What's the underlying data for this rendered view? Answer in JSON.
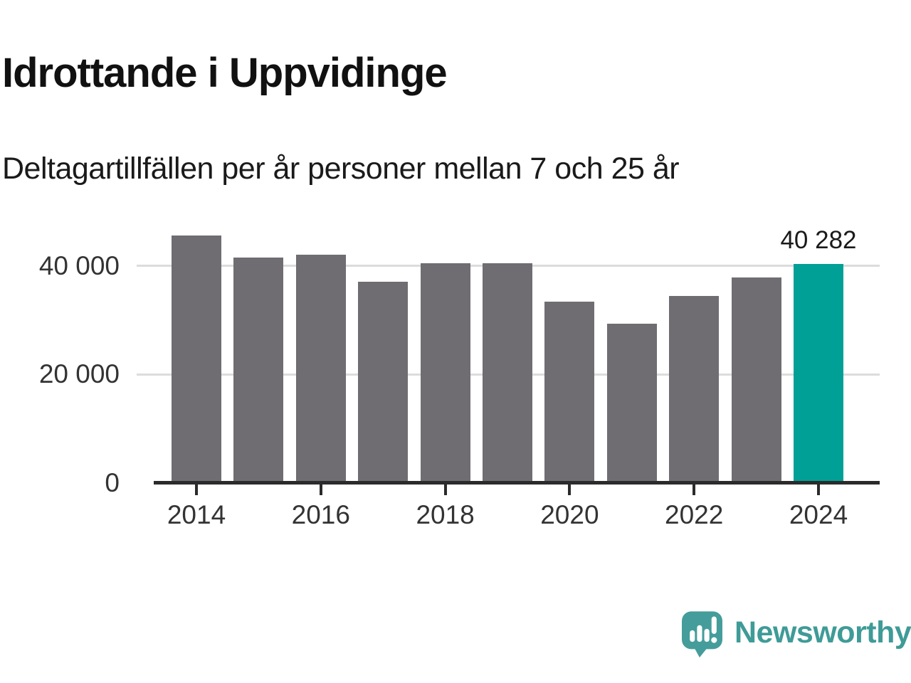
{
  "header": {
    "title": "Idrottande i Uppvidinge",
    "subtitle": "Deltagartillfällen per år personer mellan 7 och 25 år"
  },
  "chart_data": {
    "type": "bar",
    "title": "Idrottande i Uppvidinge",
    "subtitle": "Deltagartillfällen per år personer mellan 7 och 25 år",
    "categories": [
      "2014",
      "2015",
      "2016",
      "2017",
      "2018",
      "2019",
      "2020",
      "2021",
      "2022",
      "2023",
      "2024"
    ],
    "values": [
      45500,
      41400,
      42000,
      37000,
      40400,
      40400,
      33300,
      29200,
      34300,
      37800,
      40282
    ],
    "xlabel": "",
    "ylabel": "",
    "ylim": [
      0,
      48000
    ],
    "grid": "horizontal",
    "legend": "none",
    "yticks": [
      {
        "value": 0,
        "label": "0"
      },
      {
        "value": 20000,
        "label": "20 000"
      },
      {
        "value": 40000,
        "label": "40 000"
      }
    ],
    "xticks": [
      {
        "index": 0,
        "label": "2014"
      },
      {
        "index": 2,
        "label": "2016"
      },
      {
        "index": 4,
        "label": "2018"
      },
      {
        "index": 6,
        "label": "2020"
      },
      {
        "index": 8,
        "label": "2022"
      },
      {
        "index": 10,
        "label": "2024"
      }
    ],
    "highlight": {
      "category": "2024",
      "index": 10,
      "label": "40 282"
    },
    "colors": {
      "bar": "#6f6d72",
      "highlight": "#00a096",
      "gridline": "#dcdcdc",
      "axis": "#2b2b2b",
      "tick_text": "#333333",
      "annotation_text": "#1a1a1a"
    }
  },
  "footer": {
    "brand": "Newsworthy",
    "brand_color": "#3f9b97",
    "logo_icon": "newsworthy-speech-bubble-chart-icon"
  }
}
